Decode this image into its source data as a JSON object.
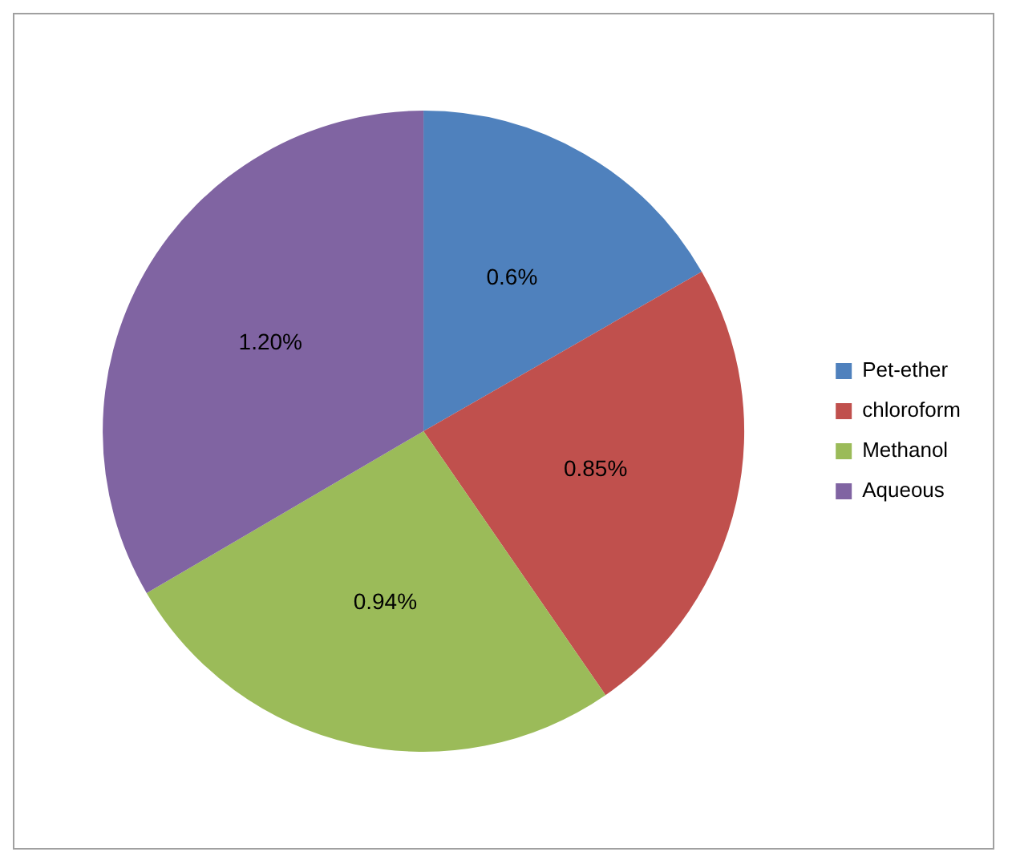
{
  "chart_data": {
    "type": "pie",
    "categories": [
      "Pet-ether",
      "chloroform",
      "Methanol",
      "Aqueous"
    ],
    "values": [
      0.6,
      0.85,
      0.94,
      1.2
    ],
    "value_labels": [
      "0.6%",
      "0.85%",
      "0.94%",
      "1.20%"
    ],
    "colors": [
      "#4f81bd",
      "#c0504d",
      "#9bbb59",
      "#8064a2"
    ],
    "legend": "right"
  }
}
